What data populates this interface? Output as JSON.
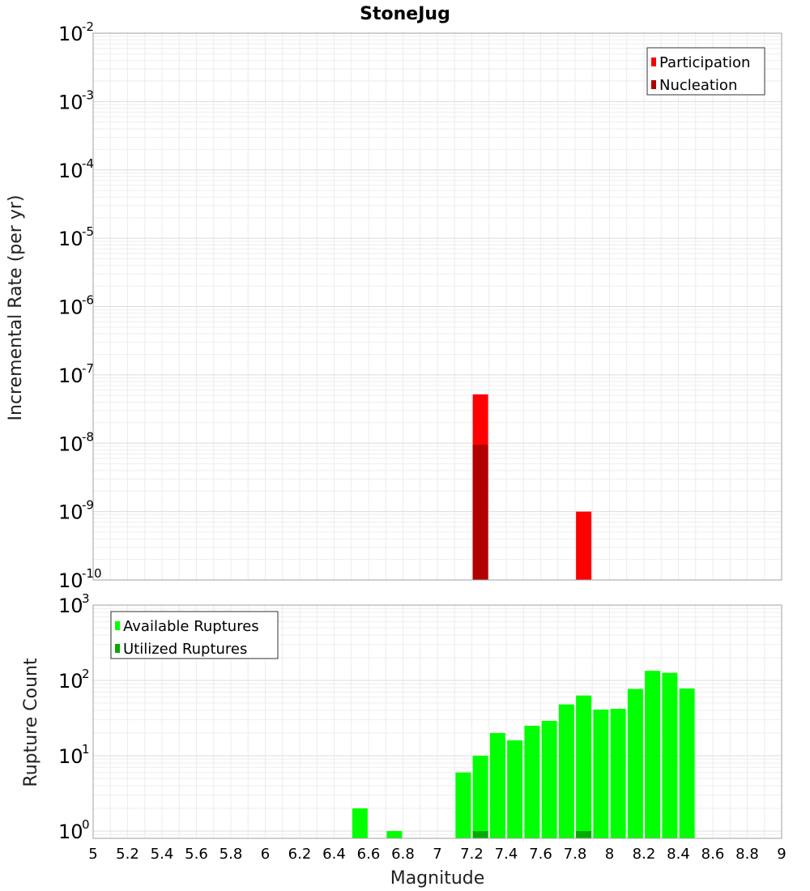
{
  "chart_data": [
    {
      "type": "bar",
      "title": "StoneJug",
      "ylabel": "Incremental Rate (per yr)",
      "xlabel": "",
      "y_scale": "log",
      "ylim": [
        1e-10,
        0.01
      ],
      "xlim": [
        5,
        9
      ],
      "grid": true,
      "legend_position": "top-right",
      "y_ticks": [
        {
          "base": "10",
          "exp": "-10",
          "value": 1e-10
        },
        {
          "base": "10",
          "exp": "-9",
          "value": 1e-09
        },
        {
          "base": "10",
          "exp": "-8",
          "value": 1e-08
        },
        {
          "base": "10",
          "exp": "-7",
          "value": 1e-07
        },
        {
          "base": "10",
          "exp": "-6",
          "value": 1e-06
        },
        {
          "base": "10",
          "exp": "-5",
          "value": 1e-05
        },
        {
          "base": "10",
          "exp": "-4",
          "value": 0.0001
        },
        {
          "base": "10",
          "exp": "-3",
          "value": 0.001
        },
        {
          "base": "10",
          "exp": "-2",
          "value": 0.01
        }
      ],
      "series": [
        {
          "name": "Participation",
          "color": "#ff0000",
          "points": [
            {
              "x": 7.25,
              "y": 5.2e-08
            },
            {
              "x": 7.85,
              "y": 1e-09
            }
          ]
        },
        {
          "name": "Nucleation",
          "color": "#b00000",
          "points": [
            {
              "x": 7.25,
              "y": 9.5e-09
            }
          ]
        }
      ]
    },
    {
      "type": "bar",
      "title": "",
      "ylabel": "Rupture Count",
      "xlabel": "Magnitude",
      "y_scale": "log",
      "ylim": [
        0.8,
        1000
      ],
      "xlim": [
        5,
        9
      ],
      "grid": true,
      "legend_position": "top-left",
      "x_ticks": [
        "5",
        "5.2",
        "5.4",
        "5.6",
        "5.8",
        "6",
        "6.2",
        "6.4",
        "6.6",
        "6.8",
        "7",
        "7.2",
        "7.4",
        "7.6",
        "7.8",
        "8",
        "8.2",
        "8.4",
        "8.6",
        "8.8",
        "9"
      ],
      "y_ticks": [
        {
          "base": "10",
          "exp": "0",
          "value": 1
        },
        {
          "base": "10",
          "exp": "1",
          "value": 10
        },
        {
          "base": "10",
          "exp": "2",
          "value": 100
        },
        {
          "base": "10",
          "exp": "3",
          "value": 1000
        }
      ],
      "series": [
        {
          "name": "Available Ruptures",
          "color": "#00ff00",
          "points": [
            {
              "x": 6.55,
              "y": 2
            },
            {
              "x": 6.75,
              "y": 1
            },
            {
              "x": 7.15,
              "y": 6
            },
            {
              "x": 7.25,
              "y": 10
            },
            {
              "x": 7.35,
              "y": 20
            },
            {
              "x": 7.45,
              "y": 16
            },
            {
              "x": 7.55,
              "y": 25
            },
            {
              "x": 7.65,
              "y": 29
            },
            {
              "x": 7.75,
              "y": 48
            },
            {
              "x": 7.85,
              "y": 63
            },
            {
              "x": 7.95,
              "y": 41
            },
            {
              "x": 8.05,
              "y": 42
            },
            {
              "x": 8.15,
              "y": 77
            },
            {
              "x": 8.25,
              "y": 134
            },
            {
              "x": 8.35,
              "y": 126
            },
            {
              "x": 8.45,
              "y": 78
            }
          ]
        },
        {
          "name": "Utilized Ruptures",
          "color": "#00aa00",
          "points": [
            {
              "x": 7.25,
              "y": 1
            },
            {
              "x": 7.85,
              "y": 1
            }
          ]
        }
      ]
    }
  ]
}
